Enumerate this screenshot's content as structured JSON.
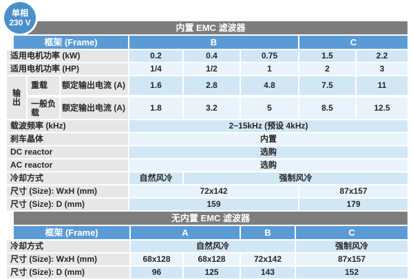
{
  "badge": {
    "line1": "单相",
    "line2": "230 V"
  },
  "colors": {
    "badge_blue": "#4a90ca",
    "header_blue": "#5b9bd5",
    "title_gray": "#7d7d7d",
    "label_gray": "#e7e7e7",
    "stripe_dark": "#d2e7f6",
    "stripe_light": "#e9f3fb"
  },
  "t1": {
    "title": "内置 EMC 滤波器",
    "frame_label": "框架 (Frame)",
    "frame_b": "B",
    "frame_c": "C",
    "output_label": "输出",
    "rows": {
      "kw": {
        "label": "适用电机功率 (kW)",
        "values": [
          "0.2",
          "0.4",
          "0.75",
          "1.5",
          "2.2"
        ]
      },
      "hp": {
        "label": "适用电机功率 (HP)",
        "values": [
          "1/4",
          "1/2",
          "1",
          "2",
          "3"
        ]
      },
      "heavy": {
        "label": "重载",
        "sub": "额定输出电流 (A)",
        "values": [
          "1.6",
          "2.8",
          "4.8",
          "7.5",
          "11"
        ]
      },
      "normal": {
        "label": "一般负载",
        "sub": "额定输出电流 (A)",
        "values": [
          "1.8",
          "3.2",
          "5",
          "8.5",
          "12.5"
        ]
      },
      "carrier": {
        "label": "载波频率 (kHz)",
        "value": "2~15kHz (预设 4kHz)"
      },
      "brake": {
        "label": "刹车晶体",
        "value": "内置"
      },
      "dc": {
        "label": "DC reactor",
        "value": "选购"
      },
      "ac": {
        "label": "AC reactor",
        "value": "选购"
      },
      "cooling": {
        "label": "冷却方式",
        "natural": "自然风冷",
        "forced": "强制风冷"
      },
      "wxh": {
        "label": "尺寸 (Size): WxH (mm)",
        "b": "72x142",
        "c": "87x157"
      },
      "d": {
        "label": "尺寸 (Size): D (mm)",
        "b": "159",
        "c": "179"
      }
    }
  },
  "t2": {
    "title": "无内置 EMC 滤波器",
    "frame_label": "框架 (Frame)",
    "frame_a": "A",
    "frame_b": "B",
    "frame_c": "C",
    "rows": {
      "cooling": {
        "label": "冷却方式",
        "natural": "自然风冷",
        "forced": "强制风冷"
      },
      "wxh": {
        "label": "尺寸 (Size): WxH (mm)",
        "values": [
          "68x128",
          "68x128",
          "72x142",
          "87x157"
        ]
      },
      "d": {
        "label": "尺寸 (Size): D (mm)",
        "values": [
          "96",
          "125",
          "143",
          "152"
        ]
      }
    }
  }
}
